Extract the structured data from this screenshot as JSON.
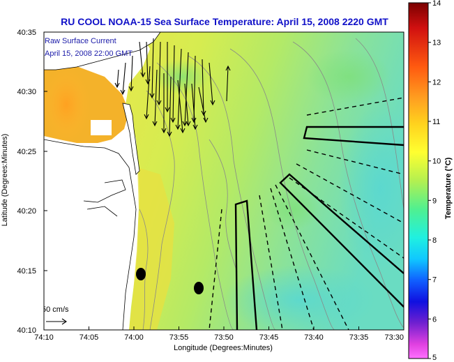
{
  "title": "RU COOL  NOAA-15  Sea Surface Temperature:  April 15, 2008 2220 GMT",
  "overlay": {
    "line1": "Raw Surface Current",
    "line2": "April 15, 2008 22:00 GMT"
  },
  "axes": {
    "xlabel": "Longitude (Degrees:Minutes)",
    "ylabel": "Latitude (Degrees:Minutes)",
    "x_ticks": [
      "74:10",
      "74:05",
      "74:00",
      "73:55",
      "73:50",
      "73:45",
      "73:40",
      "73:35",
      "73:30"
    ],
    "y_ticks": [
      "40:35",
      "40:30",
      "40:25",
      "40:20",
      "40:15",
      "40:10"
    ]
  },
  "colorbar": {
    "label": "Temperature (°C)",
    "ticks": [
      "14",
      "13",
      "12",
      "11",
      "10",
      "9",
      "8",
      "7",
      "6",
      "5"
    ],
    "min": 5,
    "max": 14
  },
  "scale": {
    "label": "50 cm/s"
  },
  "colors": {
    "title": "#1010c8",
    "overlay_text": "#1a1aa8",
    "water_main": "#c8e65a",
    "land": "#ffffff"
  }
}
